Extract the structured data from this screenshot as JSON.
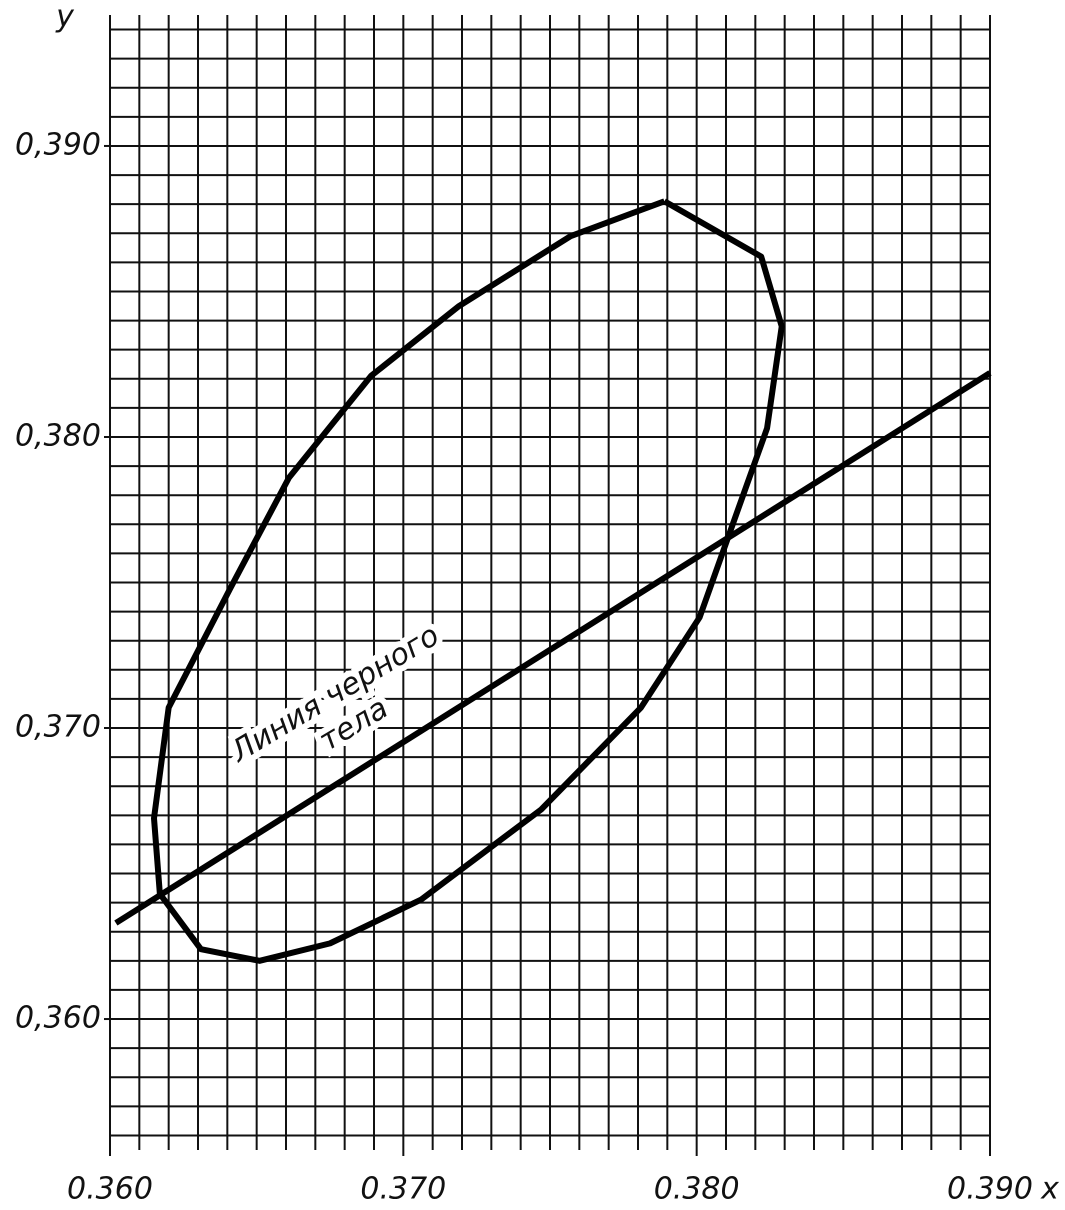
{
  "chart_data": {
    "type": "line",
    "xlabel": "x",
    "ylabel": "y",
    "xlim": [
      0.36,
      0.39
    ],
    "ylim": [
      0.3555,
      0.3945
    ],
    "xticks": [
      {
        "value": 0.36,
        "label": "0.360"
      },
      {
        "value": 0.37,
        "label": "0.370"
      },
      {
        "value": 0.38,
        "label": "0.380"
      },
      {
        "value": 0.39,
        "label": "0.390"
      }
    ],
    "yticks": [
      {
        "value": 0.36,
        "label": "0,360"
      },
      {
        "value": 0.37,
        "label": "0,370"
      },
      {
        "value": 0.38,
        "label": "0,380"
      },
      {
        "value": 0.39,
        "label": "0,390"
      }
    ],
    "grid": true,
    "grid_step": 0.001,
    "series": [
      {
        "color": "#000000",
        "x": [
          0.3789,
          0.3822,
          0.3829,
          0.3824,
          0.3813,
          0.3801,
          0.3781,
          0.3747,
          0.3706,
          0.3675,
          0.3651,
          0.3631,
          0.3617,
          0.3615,
          0.362,
          0.3641,
          0.3661,
          0.3689,
          0.3719,
          0.3757,
          0.3789
        ],
        "values": [
          0.3881,
          0.3862,
          0.3838,
          0.3803,
          0.3772,
          0.3738,
          0.3707,
          0.3672,
          0.3641,
          0.3626,
          0.362,
          0.3624,
          0.3643,
          0.3669,
          0.3707,
          0.3748,
          0.3786,
          0.3821,
          0.3845,
          0.3869,
          0.3881
        ]
      },
      {
        "color": "#000000",
        "x": [
          0.3602,
          0.39
        ],
        "values": [
          0.3633,
          0.3822
        ]
      }
    ],
    "annotation": [
      "Линия черного",
      "тела"
    ]
  }
}
